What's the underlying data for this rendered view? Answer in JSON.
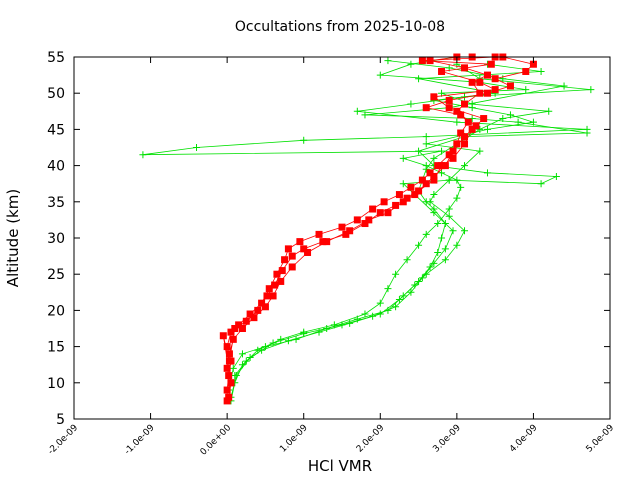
{
  "chart_data": {
    "type": "scatter",
    "title": "Occultations from 2025-10-08",
    "xlabel": "HCl VMR",
    "ylabel": "Altitude (km)",
    "xlim": [
      -2e-09,
      5e-09
    ],
    "ylim": [
      5,
      55
    ],
    "x_ticks": [
      -2e-09,
      -1e-09,
      0,
      1e-09,
      2e-09,
      3e-09,
      4e-09,
      5e-09
    ],
    "x_tick_labels": [
      "-2.0e-09",
      "-1.0e-09",
      "0.0e+00",
      "1.0e-09",
      "2.0e-09",
      "3.0e-09",
      "4.0e-09",
      "5.0e-09"
    ],
    "y_ticks": [
      5,
      10,
      15,
      20,
      25,
      30,
      35,
      40,
      45,
      50,
      55
    ],
    "y_tick_labels": [
      "5",
      "10",
      "15",
      "20",
      "25",
      "30",
      "35",
      "40",
      "45",
      "50",
      "55"
    ],
    "grid": false,
    "legend": "none",
    "series": [
      {
        "color": "#00e000",
        "marker": "plus",
        "profiles": [
          {
            "x": [
              5e-11,
              1e-10,
              2e-10,
              4e-10,
              7e-10,
              1e-09,
              1.4e-09,
              1.8e-09,
              2e-09,
              2.1e-09,
              2.2e-09,
              2.35e-09,
              2.5e-09,
              2.6e-09,
              2.75e-09,
              2.9e-09,
              3e-09,
              3.05e-09,
              3e-09,
              2.8e-09,
              2.6e-09,
              2.3e-09,
              2.8e-09,
              -1.1e-09,
              -4e-10,
              1e-09,
              2.6e-09,
              4.7e-09,
              3e-09,
              1.7e-09,
              2.4e-09,
              3.1e-09,
              4.75e-09,
              3.3e-09,
              3e-09
            ],
            "y": [
              7.5,
              10,
              12.5,
              14.5,
              16,
              17,
              18,
              19.5,
              21,
              23,
              25,
              27,
              29,
              30.5,
              32,
              34,
              35.5,
              37,
              38,
              39,
              40,
              41,
              42,
              41.5,
              42.5,
              43.5,
              44,
              45,
              46,
              47.5,
              48.5,
              49.5,
              50.5,
              52,
              54
            ]
          },
          {
            "x": [
              5e-11,
              1.2e-10,
              3e-10,
              6e-10,
              1e-09,
              1.5e-09,
              1.9e-09,
              2.2e-09,
              2.4e-09,
              2.55e-09,
              2.7e-09,
              2.85e-09,
              2.95e-09,
              2.7e-09,
              2.45e-09,
              2.3e-09,
              2.9e-09,
              4.1e-09,
              4.3e-09,
              3.4e-09,
              2.7e-09,
              2.5e-09,
              3.1e-09,
              4.7e-09,
              3.8e-09,
              3.2e-09,
              1.8e-09,
              2.9e-09,
              4.4e-09,
              3.6e-09,
              2.9e-09,
              2.1e-09
            ],
            "y": [
              8,
              11,
              13.5,
              15.5,
              16.8,
              18,
              19.2,
              20.5,
              22.5,
              24.5,
              26.5,
              28.5,
              31,
              33.5,
              36,
              37.5,
              38,
              37.5,
              38.5,
              39,
              40,
              42,
              44,
              44.5,
              46,
              46.5,
              47,
              48,
              51,
              52,
              53.5,
              54.5
            ]
          },
          {
            "x": [
              2e-11,
              8e-11,
              2e-10,
              5e-10,
              9e-10,
              1.3e-09,
              1.7e-09,
              2.1e-09,
              2.3e-09,
              2.5e-09,
              2.65e-09,
              2.75e-09,
              2.8e-09,
              2.85e-09,
              2.7e-09,
              2.6e-09,
              2.5e-09,
              2.55e-09,
              2.6e-09,
              2.7e-09,
              3e-09,
              3.3e-09,
              3.6e-09,
              4.2e-09,
              3.2e-09,
              2.8e-09,
              3.9e-09,
              3.3e-09,
              2e-09,
              2.4e-09,
              3e-09
            ],
            "y": [
              9,
              12,
              14,
              15,
              16,
              17.5,
              18.8,
              20,
              22,
              24,
              26,
              28,
              30,
              32,
              34,
              35,
              36.5,
              38,
              39.5,
              41,
              43,
              45,
              46.5,
              47.5,
              48.5,
              50,
              50.5,
              51.5,
              52.5,
              54,
              55
            ]
          },
          {
            "x": [
              1e-10,
              2.5e-10,
              4.5e-10,
              8e-10,
              1.2e-09,
              1.6e-09,
              2e-09,
              2.25e-09,
              2.45e-09,
              2.6e-09,
              2.85e-09,
              3e-09,
              3.1e-09,
              2.9e-09,
              2.65e-09,
              2.7e-09,
              2.9e-09,
              3.1e-09,
              3.3e-09,
              2.6e-09,
              3.4e-09,
              4e-09,
              3.7e-09,
              3.2e-09,
              2.7e-09,
              3.5e-09,
              2.5e-09,
              4.1e-09,
              3.4e-09
            ],
            "y": [
              11,
              13,
              14.5,
              15.8,
              17,
              18.2,
              19.5,
              21.5,
              23.5,
              25,
              27,
              29,
              31,
              33,
              35,
              36,
              38,
              40,
              42,
              43,
              45,
              46,
              47,
              48,
              49,
              50,
              52,
              53,
              54
            ]
          }
        ]
      },
      {
        "color": "#ff0000",
        "marker": "filled-square",
        "profiles": [
          {
            "x": [
              0.0,
              0.0,
              2e-11,
              5e-11,
              0.0,
              5e-11,
              1.5e-10,
              3e-10,
              4.5e-10,
              5.5e-10,
              6.5e-10,
              7.5e-10,
              8e-10,
              9.5e-10,
              1.2e-09,
              1.5e-09,
              1.7e-09,
              1.9e-09,
              2.05e-09,
              2.25e-09,
              2.4e-09,
              2.55e-09,
              2.65e-09,
              2.75e-09,
              2.9e-09,
              3e-09,
              3.05e-09,
              3.15e-09,
              3e-09,
              3.1e-09,
              3.3e-09,
              3.2e-09,
              3.4e-09,
              3.1e-09,
              2.65e-09,
              3e-09,
              3.2e-09
            ],
            "y": [
              7.5,
              9,
              11,
              13,
              15,
              17,
              18,
              19.5,
              21,
              23,
              25,
              27,
              28.5,
              29.5,
              30.5,
              31.5,
              32.5,
              34,
              35,
              36,
              37,
              38,
              39,
              40,
              41.5,
              43,
              44.5,
              46,
              47.5,
              48.5,
              50,
              51.5,
              52.5,
              53.5,
              54.5,
              55,
              55
            ]
          },
          {
            "x": [
              2e-11,
              5e-11,
              0.0,
              3e-11,
              8e-11,
              2e-10,
              3.5e-10,
              5e-10,
              6e-10,
              7e-10,
              8.5e-10,
              1.05e-09,
              1.3e-09,
              1.6e-09,
              1.85e-09,
              2.1e-09,
              2.3e-09,
              2.45e-09,
              2.6e-09,
              2.7e-09,
              2.85e-09,
              2.95e-09,
              3.1e-09,
              3.25e-09,
              3.05e-09,
              2.6e-09,
              2.9e-09,
              3.4e-09,
              3.7e-09,
              3.5e-09,
              3.9e-09,
              4e-09,
              3.6e-09
            ],
            "y": [
              8,
              10,
              12,
              14,
              16,
              17.5,
              19,
              20.5,
              22,
              24,
              26,
              28,
              29.5,
              31,
              32.5,
              33.5,
              35,
              36,
              37.5,
              38.5,
              40,
              42,
              44,
              45.5,
              47,
              48,
              49,
              50,
              51,
              52,
              53,
              54,
              55
            ]
          },
          {
            "x": [
              5e-11,
              -5e-11,
              3e-11,
              1e-10,
              2.5e-10,
              4e-10,
              5.2e-10,
              6.2e-10,
              7.2e-10,
              8.5e-10,
              1e-09,
              1.25e-09,
              1.55e-09,
              1.8e-09,
              2e-09,
              2.2e-09,
              2.35e-09,
              2.5e-09,
              2.7e-09,
              2.8e-09,
              2.95e-09,
              3.1e-09,
              3.2e-09,
              3.35e-09,
              2.9e-09,
              2.7e-09,
              3.5e-09,
              3.3e-09,
              2.8e-09,
              3.45e-09,
              2.55e-09,
              3.5e-09
            ],
            "y": [
              10,
              16.5,
              13,
              17.5,
              18.5,
              20,
              22,
              23.5,
              25.5,
              27.5,
              28.5,
              29.5,
              30.5,
              32,
              33.5,
              34.5,
              35.5,
              36.5,
              38,
              40,
              41,
              43,
              45,
              46.5,
              48,
              49.5,
              50.5,
              51.5,
              53,
              54,
              54.5,
              55
            ]
          }
        ]
      }
    ]
  }
}
